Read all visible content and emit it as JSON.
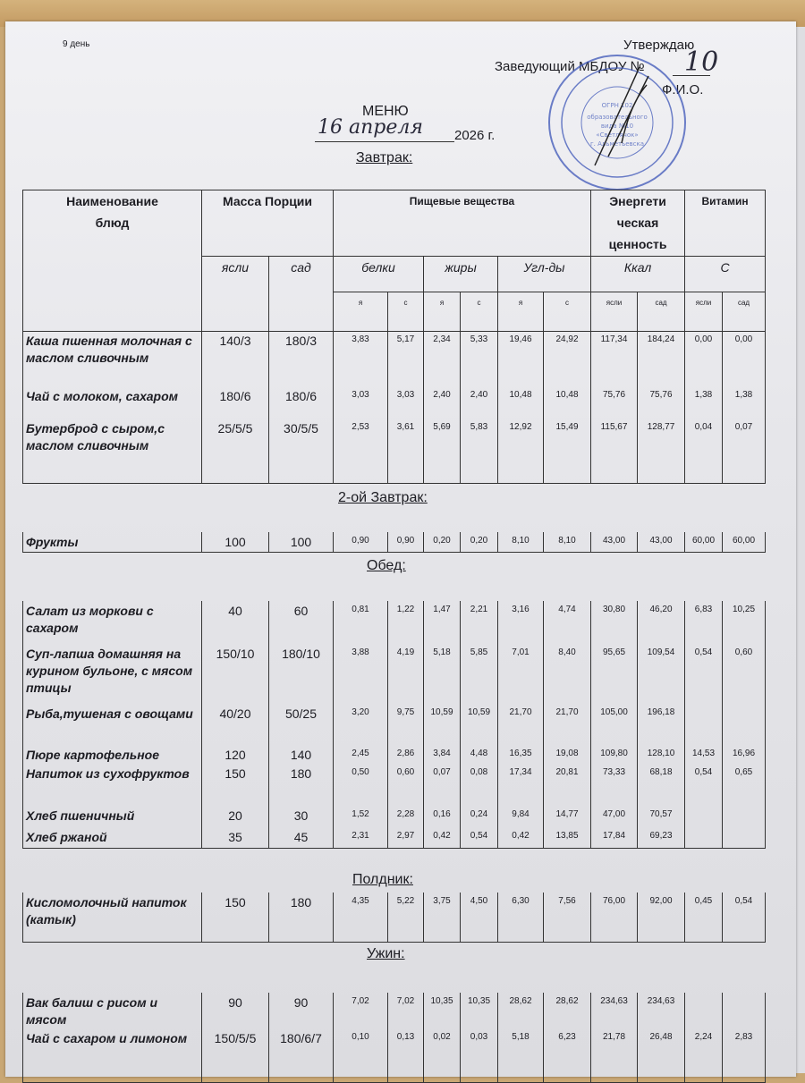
{
  "header": {
    "day": "9 день",
    "approve": "Утверждаю",
    "head_title": "Заведующий МБДОУ №",
    "kindergarten_number": "10",
    "fio": "Ф.И.О.",
    "menu": "МЕНЮ",
    "date_handwritten": "16 апреля",
    "year": "2026 г.",
    "stamp_text": "Муниципальное бюджетное дошкольное образовательное учреждение детский сад №10 «Светлячок» г. Альметьевска"
  },
  "columns": {
    "name": "Наименование блюд",
    "mass": "Масса Порции",
    "nutrients": "Пищевые вещества",
    "energy": "Энергети ческая ценность",
    "vitamin": "Витамин",
    "yasli": "ясли",
    "sad": "сад",
    "protein": "белки",
    "fat": "жиры",
    "carbs": "Угл-ды",
    "kcal": "Ккал",
    "vitc": "С",
    "sub_ya": "я",
    "sub_s": "с",
    "sub_yasli": "ясли",
    "sub_sad": "сад"
  },
  "sections": [
    {
      "title": "Завтрак:",
      "rows": [
        {
          "name": "Каша пшенная молочная с маслом сливочным",
          "yasli": "140/3",
          "sad": "180/3",
          "values": [
            "3,83",
            "5,17",
            "2,34",
            "5,33",
            "19,46",
            "24,92",
            "117,34",
            "184,24",
            "0,00",
            "0,00"
          ]
        },
        {
          "name": "Чай с молоком, сахаром",
          "yasli": "180/6",
          "sad": "180/6",
          "values": [
            "3,03",
            "3,03",
            "2,40",
            "2,40",
            "10,48",
            "10,48",
            "75,76",
            "75,76",
            "1,38",
            "1,38"
          ]
        },
        {
          "name": "Бутерброд с сыром,с маслом сливочным",
          "yasli": "25/5/5",
          "sad": "30/5/5",
          "values": [
            "2,53",
            "3,61",
            "5,69",
            "5,83",
            "12,92",
            "15,49",
            "115,67",
            "128,77",
            "0,04",
            "0,07"
          ]
        }
      ]
    },
    {
      "title": "2-ой Завтрак:",
      "rows": [
        {
          "name": "Фрукты",
          "yasli": "100",
          "sad": "100",
          "values": [
            "0,90",
            "0,90",
            "0,20",
            "0,20",
            "8,10",
            "8,10",
            "43,00",
            "43,00",
            "60,00",
            "60,00"
          ]
        }
      ]
    },
    {
      "title": "Обед:",
      "rows": [
        {
          "name": "Салат из моркови с сахаром",
          "yasli": "40",
          "sad": "60",
          "values": [
            "0,81",
            "1,22",
            "1,47",
            "2,21",
            "3,16",
            "4,74",
            "30,80",
            "46,20",
            "6,83",
            "10,25"
          ]
        },
        {
          "name": "Суп-лапша домашняя на курином бульоне, с мясом птицы",
          "yasli": "150/10",
          "sad": "180/10",
          "values": [
            "3,88",
            "4,19",
            "5,18",
            "5,85",
            "7,01",
            "8,40",
            "95,65",
            "109,54",
            "0,54",
            "0,60"
          ]
        },
        {
          "name": "Рыба,тушеная с овощами",
          "yasli": "40/20",
          "sad": "50/25",
          "values": [
            "3,20",
            "9,75",
            "10,59",
            "10,59",
            "21,70",
            "21,70",
            "105,00",
            "196,18",
            "",
            ""
          ]
        },
        {
          "name": "Пюре картофельное",
          "yasli": "120",
          "sad": "140",
          "values": [
            "2,45",
            "2,86",
            "3,84",
            "4,48",
            "16,35",
            "19,08",
            "109,80",
            "128,10",
            "14,53",
            "16,96"
          ]
        },
        {
          "name": "Напиток из сухофруктов",
          "yasli": "150",
          "sad": "180",
          "values": [
            "0,50",
            "0,60",
            "0,07",
            "0,08",
            "17,34",
            "20,81",
            "73,33",
            "68,18",
            "0,54",
            "0,65"
          ]
        },
        {
          "name": "Хлеб пшеничный",
          "yasli": "20",
          "sad": "30",
          "values": [
            "1,52",
            "2,28",
            "0,16",
            "0,24",
            "9,84",
            "14,77",
            "47,00",
            "70,57",
            "",
            ""
          ]
        },
        {
          "name": "Хлеб ржаной",
          "yasli": "35",
          "sad": "45",
          "values": [
            "2,31",
            "2,97",
            "0,42",
            "0,54",
            "0,42",
            "13,85",
            "17,84",
            "69,23",
            "",
            ""
          ]
        }
      ]
    },
    {
      "title": "Полдник:",
      "rows": [
        {
          "name": "Кисломолочный напиток (катык)",
          "yasli": "150",
          "sad": "180",
          "values": [
            "4,35",
            "5,22",
            "3,75",
            "4,50",
            "6,30",
            "7,56",
            "76,00",
            "92,00",
            "0,45",
            "0,54"
          ]
        }
      ]
    },
    {
      "title": "Ужин:",
      "rows": [
        {
          "name": "Вак балиш с рисом и мясом",
          "yasli": "90",
          "sad": "90",
          "values": [
            "7,02",
            "7,02",
            "10,35",
            "10,35",
            "28,62",
            "28,62",
            "234,63",
            "234,63",
            "",
            ""
          ]
        },
        {
          "name": "Чай с сахаром и лимоном",
          "yasli": "150/5/5",
          "sad": "180/6/7",
          "values": [
            "0,10",
            "0,13",
            "0,02",
            "0,03",
            "5,18",
            "6,23",
            "21,78",
            "26,48",
            "2,24",
            "2,83"
          ]
        }
      ]
    }
  ]
}
